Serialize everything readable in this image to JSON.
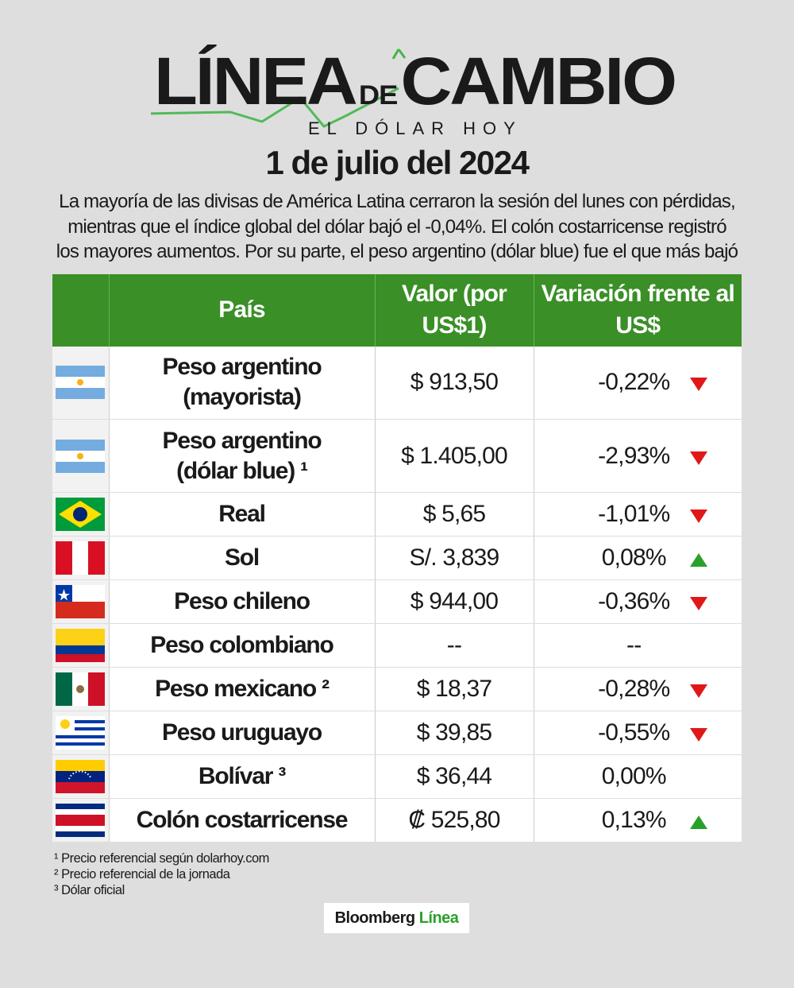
{
  "logo": {
    "title_left": "LÍNEA",
    "title_de": "DE",
    "title_right": "CAMBIO",
    "subtitle": "EL DÓLAR HOY"
  },
  "date": "1 de julio del 2024",
  "intro": "La mayoría de las divisas de América Latina cerraron la sesión del lunes con pérdidas, mientras que el índice global del dólar bajó el -0,04%. El colón costarricense registró los mayores aumentos. Por su parte, el peso argentino (dólar blue) fue el que más bajó",
  "table": {
    "headers": [
      "País",
      "Valor (por US$1)",
      "Variación frente al US$"
    ],
    "rows": [
      {
        "flag": "argentina",
        "name": "Peso argentino (mayorista)",
        "value": "$ 913,50",
        "change": "-0,22%",
        "trend": "down"
      },
      {
        "flag": "argentina",
        "name": "Peso argentino (dólar blue) ¹",
        "value": "$ 1.405,00",
        "change": "-2,93%",
        "trend": "down"
      },
      {
        "flag": "brazil",
        "name": "Real",
        "value": "$ 5,65",
        "change": "-1,01%",
        "trend": "down"
      },
      {
        "flag": "peru",
        "name": "Sol",
        "value": "S/. 3,839",
        "change": "0,08%",
        "trend": "up"
      },
      {
        "flag": "chile",
        "name": "Peso chileno",
        "value": "$ 944,00",
        "change": "-0,36%",
        "trend": "down"
      },
      {
        "flag": "colombia",
        "name": "Peso colombiano",
        "value": "--",
        "change": "--",
        "trend": "none"
      },
      {
        "flag": "mexico",
        "name": "Peso mexicano ²",
        "value": "$ 18,37",
        "change": "-0,28%",
        "trend": "down"
      },
      {
        "flag": "uruguay",
        "name": "Peso uruguayo",
        "value": "$ 39,85",
        "change": "-0,55%",
        "trend": "down"
      },
      {
        "flag": "venezuela",
        "name": "Bolívar ³",
        "value": "$ 36,44",
        "change": "0,00%",
        "trend": "none"
      },
      {
        "flag": "costa-rica",
        "name": "Colón costarricense",
        "value": "₡ 525,80",
        "change": "0,13%",
        "trend": "up"
      }
    ]
  },
  "notes": [
    "¹ Precio referencial según dolarhoy.com",
    "² Precio referencial de la jornada",
    "³ Dólar oficial"
  ],
  "brand": {
    "left": "Bloomberg",
    "right": "Línea"
  },
  "colors": {
    "header_green": "#3a8f27",
    "down": "#e01818",
    "up": "#2aa02a",
    "background": "#dedede"
  }
}
